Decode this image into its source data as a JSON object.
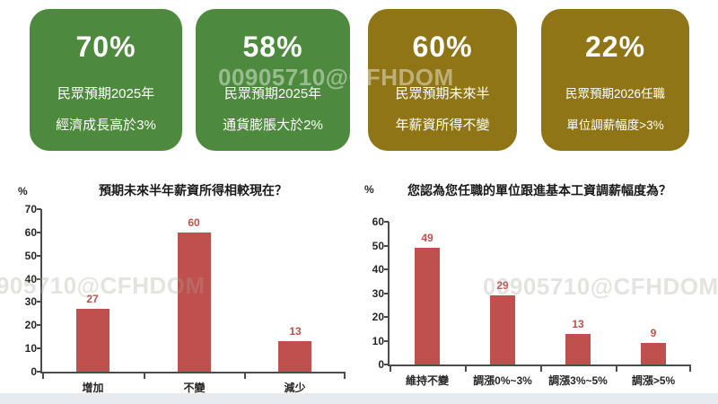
{
  "watermark": {
    "text": "00905710@CFHDOM"
  },
  "colors": {
    "card_green": "#4E8A3E",
    "card_olive": "#8F7515",
    "bar_red": "#C0504D",
    "axis": "#4C4C4C"
  },
  "cards": [
    {
      "value": "70%",
      "line1": "民眾預期2025年",
      "line2": "經濟成長高於3%",
      "color": "#4E8A3E"
    },
    {
      "value": "58%",
      "line1": "民眾預期2025年",
      "line2": "通貨膨脹大於2%",
      "color": "#4E8A3E"
    },
    {
      "value": "60%",
      "line1": "民眾預期未來半",
      "line2": "年薪資所得不變",
      "color": "#8F7515"
    },
    {
      "value": "22%",
      "line1": "民眾預期2026任職",
      "line2": "單位調薪幅度>3%",
      "color": "#8F7515"
    }
  ],
  "chart_data": [
    {
      "type": "bar",
      "title": "預期未來半年薪資所得相較現在？",
      "unit_label": "%",
      "categories": [
        "增加",
        "不變",
        "減少"
      ],
      "values": [
        27,
        60,
        13
      ],
      "ylim": [
        0,
        70
      ],
      "ytick_step": 10,
      "grid": false,
      "legend": false,
      "bar_color": "#C0504D",
      "value_label_color": "#C0504D"
    },
    {
      "type": "bar",
      "title": "您認為您任職的單位跟進基本工資調薪幅度為？",
      "unit_label": "%",
      "categories": [
        "維持不變",
        "調漲0%~3%",
        "調漲3%~5%",
        "調漲>5%"
      ],
      "values": [
        49,
        29,
        13,
        9
      ],
      "ylim": [
        0,
        60
      ],
      "ytick_step": 10,
      "grid": false,
      "legend": false,
      "bar_color": "#C0504D",
      "value_label_color": "#C0504D"
    }
  ]
}
